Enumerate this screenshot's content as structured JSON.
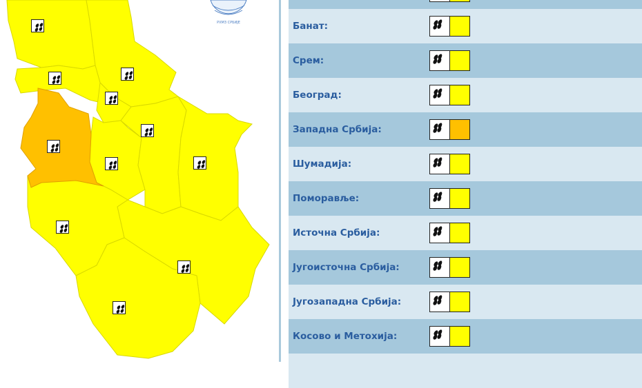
{
  "logo_text": "РХМЗ СРБИЈЕ",
  "colors": {
    "yellow": "#ffff00",
    "orange": "#ffc000",
    "row_dark": "#a5c8dc",
    "row_light": "#d9e8f1",
    "label": "#2a5d9f"
  },
  "warning_icon": "rain-icon",
  "regions": [
    {
      "label": "",
      "level_color": "#ffff00"
    },
    {
      "label": "Банат:",
      "level_color": "#ffff00"
    },
    {
      "label": "Срем:",
      "level_color": "#ffff00"
    },
    {
      "label": "Београд:",
      "level_color": "#ffff00"
    },
    {
      "label": "Западна Србија:",
      "level_color": "#ffc000"
    },
    {
      "label": "Шумадија:",
      "level_color": "#ffff00"
    },
    {
      "label": "Поморавље:",
      "level_color": "#ffff00"
    },
    {
      "label": "Источна Србија:",
      "level_color": "#ffff00"
    },
    {
      "label": "Југоисточна Србија:",
      "level_color": "#ffff00"
    },
    {
      "label": "Југозападна Србија:",
      "level_color": "#ffff00"
    },
    {
      "label": "Косово и Метохија:",
      "level_color": "#ffff00"
    }
  ]
}
